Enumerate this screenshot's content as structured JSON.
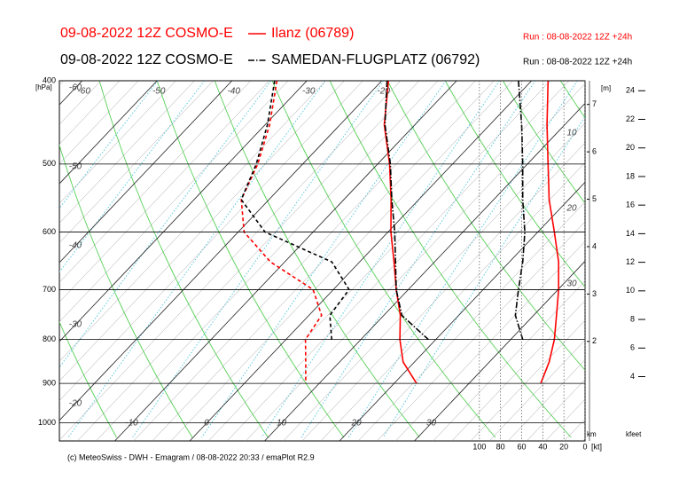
{
  "chart_data": {
    "type": "emagram",
    "series": [
      {
        "header": "09-08-2022 12Z COSMO-E",
        "name": "Ilanz (06789)",
        "run": "Run : 08-08-2022 12Z +24h",
        "color": "#ff0000",
        "line_style": "solid",
        "temperature": [
          -19.1,
          -14.1,
          -8.4,
          -3.7,
          0.4,
          4.6,
          8.4,
          12.2,
          15.2,
          18.5,
          23.0
        ],
        "dewpoint": [
          -34.0,
          -29.4,
          -26.0,
          -23.7,
          -19.2,
          -11.9,
          -2.7,
          1.7,
          2.6,
          5.5,
          8.2
        ],
        "wind_speed": [
          35,
          36,
          35,
          34,
          29,
          25,
          25,
          27,
          29,
          34,
          42
        ]
      },
      {
        "header": "09-08-2022 12Z COSMO-E",
        "name": "SAMEDAN-FLUGPLATZ (06792)",
        "run": "Run : 08-08-2022 12Z +24h",
        "color": "#000000",
        "line_style": "dash-dot",
        "temperature": [
          -19.3,
          -14.0,
          -8.3,
          -3.6,
          0.9,
          4.8,
          8.4,
          12.4,
          19.0,
          null,
          null
        ],
        "dewpoint": [
          -34.3,
          -29.7,
          -26.2,
          -23.7,
          -16.4,
          -3.7,
          2.1,
          2.8,
          6.1,
          null,
          null
        ],
        "wind_speed": [
          63,
          60,
          59,
          59,
          57,
          59,
          63,
          66,
          59,
          null,
          null
        ]
      }
    ],
    "pressure": [
      400,
      450,
      500,
      550,
      600,
      650,
      700,
      750,
      800,
      850,
      900
    ],
    "y_label": "[hPa]",
    "log_y": true,
    "ylim": [
      1050,
      400
    ],
    "yticks": [
      400,
      500,
      600,
      700,
      800,
      900,
      1000
    ],
    "xticks": [
      -60,
      -50,
      -40,
      -30,
      -20,
      -10,
      0,
      10,
      20,
      30
    ],
    "wind_lim": [
      0,
      120
    ],
    "wind_ticks": [
      100,
      80,
      60,
      40,
      20,
      0
    ],
    "wind_label": "[kt]",
    "wind_panel_labels": [
      10,
      20,
      30
    ],
    "km_label": "[m]",
    "km_unit": "km",
    "km_lim": [
      -0.1,
      7.5
    ],
    "km_ticks": [
      2,
      3,
      4,
      5,
      6,
      7
    ],
    "kfeet_unit": "kfeet",
    "kfeet_lim": [
      -0.5,
      24.7
    ],
    "kfeet_ticks": [
      4,
      6,
      8,
      10,
      12,
      14,
      16,
      18,
      20,
      22,
      24
    ],
    "footer": "(c) MeteoSwiss - DWH - Emagram / 08-08-2022  20:33 / emaPlot R2.9"
  }
}
